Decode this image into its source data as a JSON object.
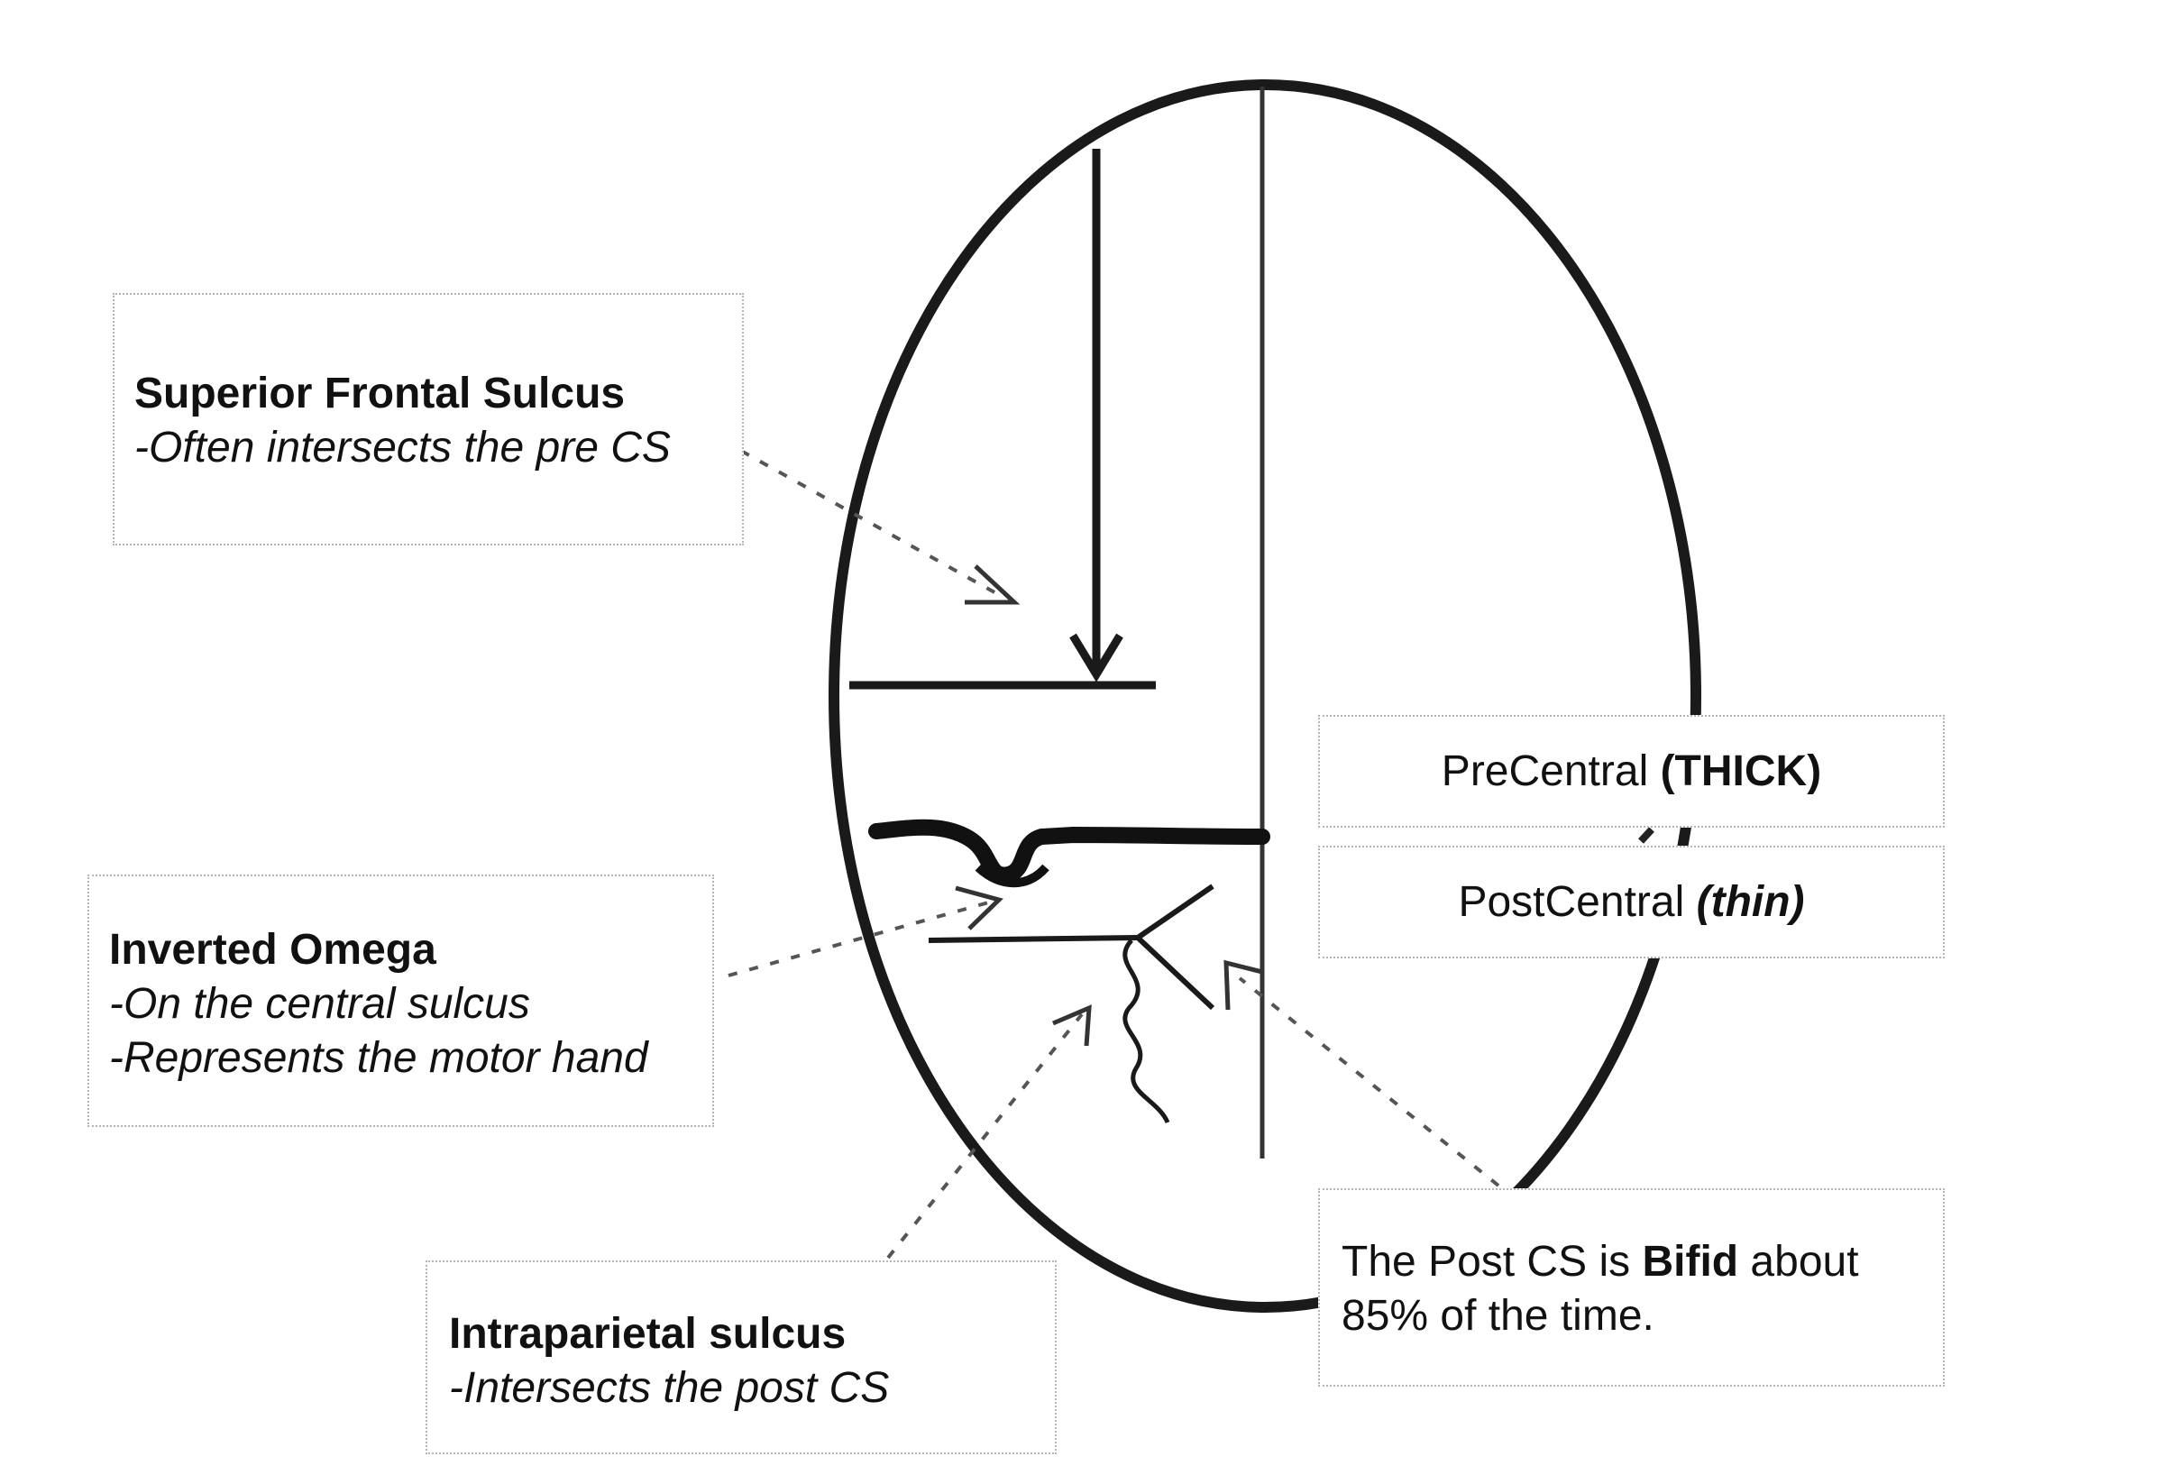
{
  "labels": {
    "sfs": {
      "title": "Superior Frontal Sulcus",
      "sub": "-Often intersects the pre CS"
    },
    "omega": {
      "title": "Inverted Omega",
      "sub1": "-On the central sulcus",
      "sub2": "-Represents the motor hand"
    },
    "ips": {
      "title": "Intraparietal sulcus",
      "sub": "-Intersects the post CS"
    },
    "precentral": {
      "text": "PreCentral ",
      "emph": "(THICK)"
    },
    "postcentral": {
      "text": "PostCentral ",
      "emph": "(thin)"
    },
    "bifid": {
      "pre": "The Post CS is ",
      "emph": "Bifid",
      "post": " about 85% of the time."
    }
  },
  "colors": {
    "stroke": "#1a1a1a",
    "box_border": "#b5b5b5",
    "background": "#ffffff"
  }
}
